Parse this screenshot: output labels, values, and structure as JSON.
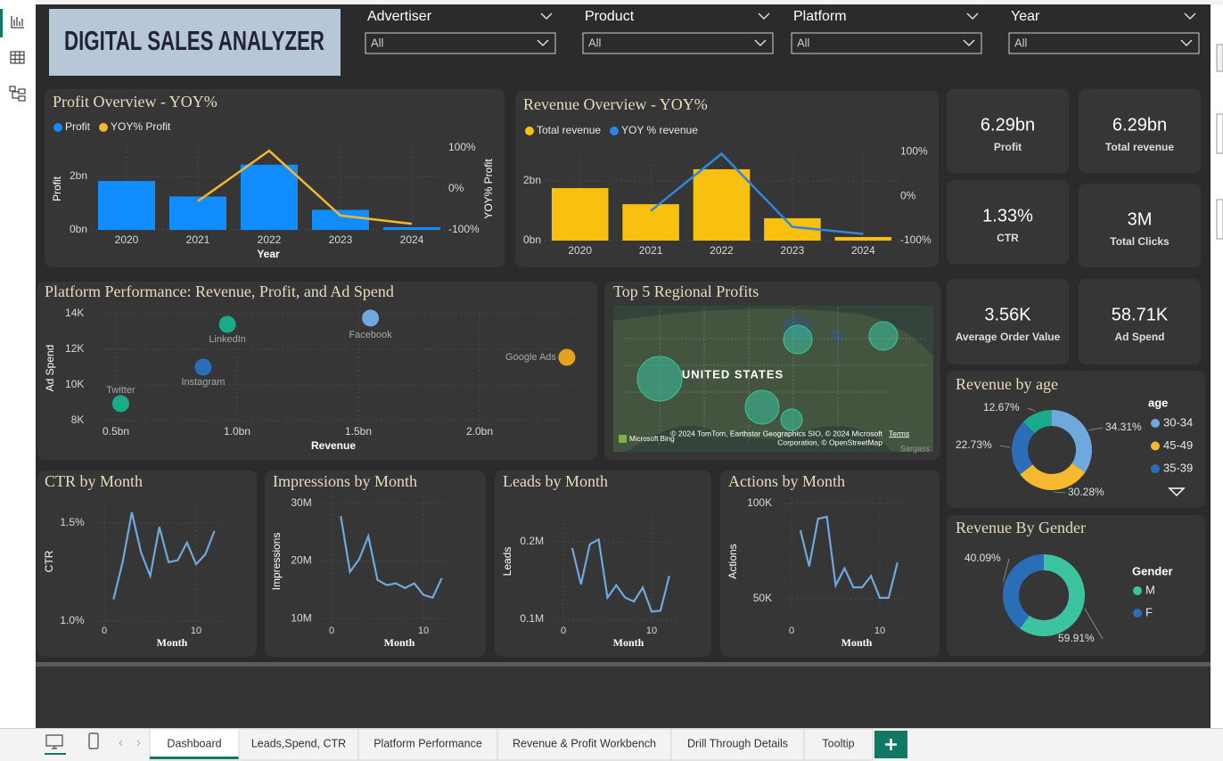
{
  "header": {
    "title": "DIGITAL SALES ANALYZER"
  },
  "filters": [
    {
      "label": "Advertiser",
      "value": "All"
    },
    {
      "label": "Product",
      "value": "All"
    },
    {
      "label": "Platform",
      "value": "All"
    },
    {
      "label": "Year",
      "value": "All"
    }
  ],
  "kpis": [
    {
      "value": "6.29bn",
      "label": "Profit"
    },
    {
      "value": "6.29bn",
      "label": "Total revenue"
    },
    {
      "value": "1.33%",
      "label": "CTR"
    },
    {
      "value": "3M",
      "label": "Total Clicks"
    },
    {
      "value": "3.56K",
      "label": "Average Order Value"
    },
    {
      "value": "58.71K",
      "label": "Ad Spend"
    }
  ],
  "map": {
    "title": "Top 5 Regional Profits",
    "country": "UNITED STATES",
    "attribution": [
      "© 2024 TomTom, Earthstar Geographics SIO, © 2024 Microsoft",
      "Corporation, © OpenStreetMap"
    ],
    "terms": "Terms",
    "logo": "Microsoft Bing",
    "sea": "Sargass"
  },
  "tabs": [
    "Dashboard",
    "Leads,Spend, CTR",
    "Platform Performance",
    "Revenue & Profit Workbench",
    "Drill Through Details",
    "Tooltip"
  ],
  "chart_data": [
    {
      "type": "combo",
      "title": "Profit Overview - YOY%",
      "x_label": "Year",
      "y_label": "Profit",
      "y2_label": "YOY% Profit",
      "categories": [
        "2020",
        "2021",
        "2022",
        "2023",
        "2024"
      ],
      "series": [
        {
          "name": "Profit",
          "color": "#118dff",
          "type": "bar",
          "values": [
            1.83,
            1.25,
            2.44,
            0.75,
            0.1
          ]
        },
        {
          "name": "YOY% Profit",
          "color": "#f2b631",
          "type": "line",
          "axis": "y2",
          "values": [
            null,
            -30,
            93,
            -65,
            -85
          ]
        }
      ],
      "ylim": [
        0,
        3.1
      ],
      "yticks": [
        {
          "value": 0,
          "label": "0bn"
        },
        {
          "value": 2,
          "label": "2bn"
        }
      ],
      "y2lim": [
        -100,
        102
      ],
      "y2ticks": [
        {
          "value": 100,
          "label": "100%"
        },
        {
          "value": 0,
          "label": "0%"
        },
        {
          "value": -100,
          "label": "-100%"
        }
      ]
    },
    {
      "type": "combo",
      "title": "Revenue Overview - YOY%",
      "categories": [
        "2020",
        "2021",
        "2022",
        "2023",
        "2024"
      ],
      "series": [
        {
          "name": "Total revenue",
          "color": "#f9c00f",
          "type": "bar",
          "values": [
            1.76,
            1.22,
            2.39,
            0.75,
            0.12
          ]
        },
        {
          "name": "YOY % revenue",
          "color": "#2f86e0",
          "type": "line",
          "axis": "y2",
          "values": [
            null,
            -33,
            96,
            -69,
            -85
          ]
        }
      ],
      "ylim": [
        0,
        3.0
      ],
      "yticks": [
        {
          "value": 0,
          "label": "0bn"
        },
        {
          "value": 2,
          "label": "2bn"
        }
      ],
      "y2lim": [
        -100,
        102
      ],
      "y2ticks": [
        {
          "value": 100,
          "label": "100%"
        },
        {
          "value": 0,
          "label": "0%"
        },
        {
          "value": -100,
          "label": "-100%"
        }
      ]
    },
    {
      "type": "scatter",
      "title": "Platform Performance: Revenue, Profit, and Ad Spend",
      "x_label": "Revenue",
      "y_label": "Ad Spend",
      "series": [
        {
          "name": "Twitter",
          "color": "#1aab8a",
          "x": [
            0.52
          ],
          "values": [
            8.95
          ]
        },
        {
          "name": "LinkedIn",
          "color": "#1aab8a",
          "x": [
            0.96
          ],
          "values": [
            13.4
          ]
        },
        {
          "name": "Instagram",
          "color": "#2a6eb8",
          "x": [
            0.86
          ],
          "values": [
            11.0
          ]
        },
        {
          "name": "Facebook",
          "color": "#6fa8dc",
          "x": [
            1.55
          ],
          "values": [
            13.75
          ]
        },
        {
          "name": "Google Ads",
          "color": "#e3a320",
          "x": [
            2.36
          ],
          "values": [
            11.55
          ]
        }
      ],
      "xlim": [
        0.45,
        2.4
      ],
      "xticks": [
        {
          "value": 0.5,
          "label": "0.5bn"
        },
        {
          "value": 1.0,
          "label": "1.0bn"
        },
        {
          "value": 1.5,
          "label": "1.5bn"
        },
        {
          "value": 2.0,
          "label": "2.0bn"
        }
      ],
      "ylim": [
        7.5,
        14.35
      ],
      "yticks": [
        {
          "value": 14,
          "label": "14K"
        },
        {
          "value": 12,
          "label": "12K"
        },
        {
          "value": 10,
          "label": "10K"
        },
        {
          "value": 8,
          "label": "8K"
        }
      ]
    },
    {
      "type": "donut",
      "title": "Revenue by age",
      "legend_title": "age",
      "categories": [
        "30-34",
        "45-49",
        "35-39",
        null
      ],
      "values": [
        34.31,
        30.28,
        22.73,
        12.67
      ],
      "value_labels": [
        "34.31%",
        "30.28%",
        "22.73%",
        "12.67%"
      ],
      "colors": [
        "#6fa8dc",
        "#f5b82e",
        "#2a6eb8",
        "#1aab8a"
      ]
    },
    {
      "type": "donut",
      "title": "Revenue By Gender",
      "legend_title": "Gender",
      "categories": [
        "M",
        "F"
      ],
      "values": [
        59.91,
        40.09
      ],
      "value_labels": [
        "59.91%",
        "40.09%"
      ],
      "colors": [
        "#3cc3a0",
        "#2a6eb8"
      ]
    },
    {
      "type": "line",
      "title": "CTR by Month",
      "x_label": "Month",
      "y_label": "CTR",
      "color": "#6fa8dc",
      "x": [
        1,
        2,
        3,
        4,
        5,
        6,
        7,
        8,
        9,
        10,
        11,
        12
      ],
      "values": [
        1.11,
        1.3,
        1.555,
        1.35,
        1.23,
        1.48,
        1.3,
        1.31,
        1.4,
        1.29,
        1.34,
        1.46
      ],
      "xlim": [
        -1,
        13
      ],
      "xticks": [
        0,
        10
      ],
      "ylim": [
        0.94,
        1.6
      ],
      "yticks": [
        {
          "value": 1.5,
          "label": "1.5%"
        },
        {
          "value": 1.0,
          "label": "1.0%"
        }
      ]
    },
    {
      "type": "line",
      "title": "Impressions by Month",
      "x_label": "Month",
      "y_label": "Impressions",
      "color": "#6fa8dc",
      "x": [
        1,
        2,
        3,
        4,
        5,
        6,
        7,
        8,
        9,
        10,
        11,
        12
      ],
      "values": [
        27.8,
        18.1,
        20.3,
        24.3,
        16.7,
        15.8,
        16.1,
        15.3,
        16.1,
        14.1,
        13.6,
        17.0
      ],
      "xlim": [
        -1,
        13
      ],
      "xticks": [
        0,
        10
      ],
      "ylim": [
        8,
        32
      ],
      "yticks": [
        {
          "value": 30,
          "label": "30M"
        },
        {
          "value": 20,
          "label": "20M"
        },
        {
          "value": 10,
          "label": "10M"
        }
      ]
    },
    {
      "type": "line",
      "title": "Leads by Month",
      "x_label": "Month",
      "y_label": "Leads",
      "color": "#6fa8dc",
      "x": [
        1,
        2,
        3,
        4,
        5,
        6,
        7,
        8,
        9,
        10,
        11,
        12
      ],
      "values": [
        0.192,
        0.145,
        0.197,
        0.203,
        0.128,
        0.144,
        0.128,
        0.123,
        0.141,
        0.11,
        0.111,
        0.156
      ],
      "xlim": [
        -1,
        13
      ],
      "xticks": [
        0,
        10
      ],
      "ylim": [
        0.085,
        0.23
      ],
      "yticks": [
        {
          "value": 0.2,
          "label": "0.2M"
        },
        {
          "value": 0.1,
          "label": "0.1M"
        }
      ]
    },
    {
      "type": "line",
      "title": "Actions by Month",
      "x_label": "Month",
      "y_label": "Actions",
      "color": "#6fa8dc",
      "x": [
        1,
        2,
        3,
        4,
        5,
        6,
        7,
        8,
        9,
        10,
        11,
        12
      ],
      "values": [
        86,
        67,
        92,
        93,
        57,
        66,
        56,
        56,
        62,
        50.5,
        50.5,
        69
      ],
      "xlim": [
        -1,
        13
      ],
      "xticks": [
        0,
        10
      ],
      "ylim": [
        44,
        103
      ],
      "yticks": [
        {
          "value": 100,
          "label": "100K"
        },
        {
          "value": 50,
          "label": "50K"
        }
      ]
    }
  ]
}
